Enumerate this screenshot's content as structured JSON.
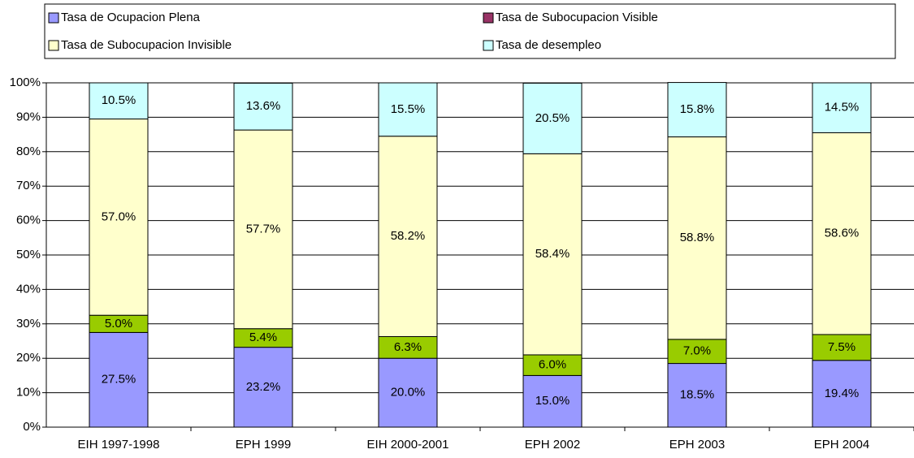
{
  "chart_data": {
    "type": "stacked_bar",
    "categories": [
      "EIH 1997-1998",
      "EPH 1999",
      "EIH 2000-2001",
      "EPH 2002",
      "EPH 2003",
      "EPH 2004"
    ],
    "series": [
      {
        "name": "Tasa de Ocupacion Plena",
        "color": "#9999ff",
        "values": [
          27.5,
          23.2,
          20.0,
          15.0,
          18.5,
          19.4
        ],
        "value_labels": [
          "27.5%",
          "23.2%",
          "20.0%",
          "15.0%",
          "18.5%",
          "19.4%"
        ]
      },
      {
        "name": "Tasa de Subocupacion Visible",
        "color": "#99cc00",
        "legend_color": "#993366",
        "values": [
          5.0,
          5.4,
          6.3,
          6.0,
          7.0,
          7.5
        ],
        "value_labels": [
          "5.0%",
          "5.4%",
          "6.3%",
          "6.0%",
          "7.0%",
          "7.5%"
        ]
      },
      {
        "name": "Tasa de Subocupacion Invisible",
        "color": "#ffffcc",
        "values": [
          57.0,
          57.7,
          58.2,
          58.4,
          58.8,
          58.6
        ],
        "value_labels": [
          "57.0%",
          "57.7%",
          "58.2%",
          "58.4%",
          "58.8%",
          "58.6%"
        ]
      },
      {
        "name": "Tasa de desempleo",
        "color": "#ccffff",
        "values": [
          10.5,
          13.6,
          15.5,
          20.5,
          15.8,
          14.5
        ],
        "value_labels": [
          "10.5%",
          "13.6%",
          "15.5%",
          "20.5%",
          "15.8%",
          "14.5%"
        ]
      }
    ],
    "ylim": [
      0,
      100
    ],
    "yticks": [
      {
        "value": 0,
        "label": "0%"
      },
      {
        "value": 10,
        "label": "10%"
      },
      {
        "value": 20,
        "label": "20%"
      },
      {
        "value": 30,
        "label": "30%"
      },
      {
        "value": 40,
        "label": "40%"
      },
      {
        "value": 50,
        "label": "50%"
      },
      {
        "value": 60,
        "label": "60%"
      },
      {
        "value": 70,
        "label": "70%"
      },
      {
        "value": 80,
        "label": "80%"
      },
      {
        "value": 90,
        "label": "90%"
      },
      {
        "value": 100,
        "label": "100%"
      }
    ],
    "grid": true,
    "legend": "top"
  }
}
